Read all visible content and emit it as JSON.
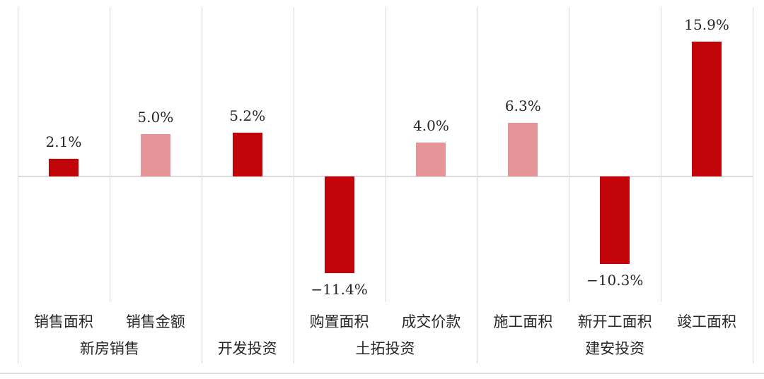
{
  "chart_data": {
    "type": "bar",
    "title": "",
    "xlabel": "",
    "ylabel": "",
    "unit": "percent",
    "legend": "none",
    "grid": "vertical category separators, horizontal zero baseline",
    "axis_hints": {
      "y_min": -15,
      "y_max": 20,
      "zero_baseline": true
    },
    "colors": {
      "dark_red": "#c20508",
      "light_red": "#e59598"
    },
    "groups": [
      {
        "label": "新房销售",
        "items": [
          {
            "label": "销售面积",
            "value": 2.1,
            "display": "2.1%",
            "color": "dark_red"
          },
          {
            "label": "销售金额",
            "value": 5.0,
            "display": "5.0%",
            "color": "light_red"
          }
        ]
      },
      {
        "label": "开发投资",
        "items": [
          {
            "label": "",
            "value": 5.2,
            "display": "5.2%",
            "color": "dark_red"
          }
        ]
      },
      {
        "label": "土拓投资",
        "items": [
          {
            "label": "购置面积",
            "value": -11.4,
            "display": "−11.4%",
            "color": "dark_red"
          },
          {
            "label": "成交价款",
            "value": 4.0,
            "display": "4.0%",
            "color": "light_red"
          }
        ]
      },
      {
        "label": "建安投资",
        "items": [
          {
            "label": "施工面积",
            "value": 6.3,
            "display": "6.3%",
            "color": "light_red"
          },
          {
            "label": "新开工面积",
            "value": -10.3,
            "display": "−10.3%",
            "color": "dark_red"
          },
          {
            "label": "竣工面积",
            "value": 15.9,
            "display": "15.9%",
            "color": "dark_red"
          }
        ]
      }
    ]
  }
}
